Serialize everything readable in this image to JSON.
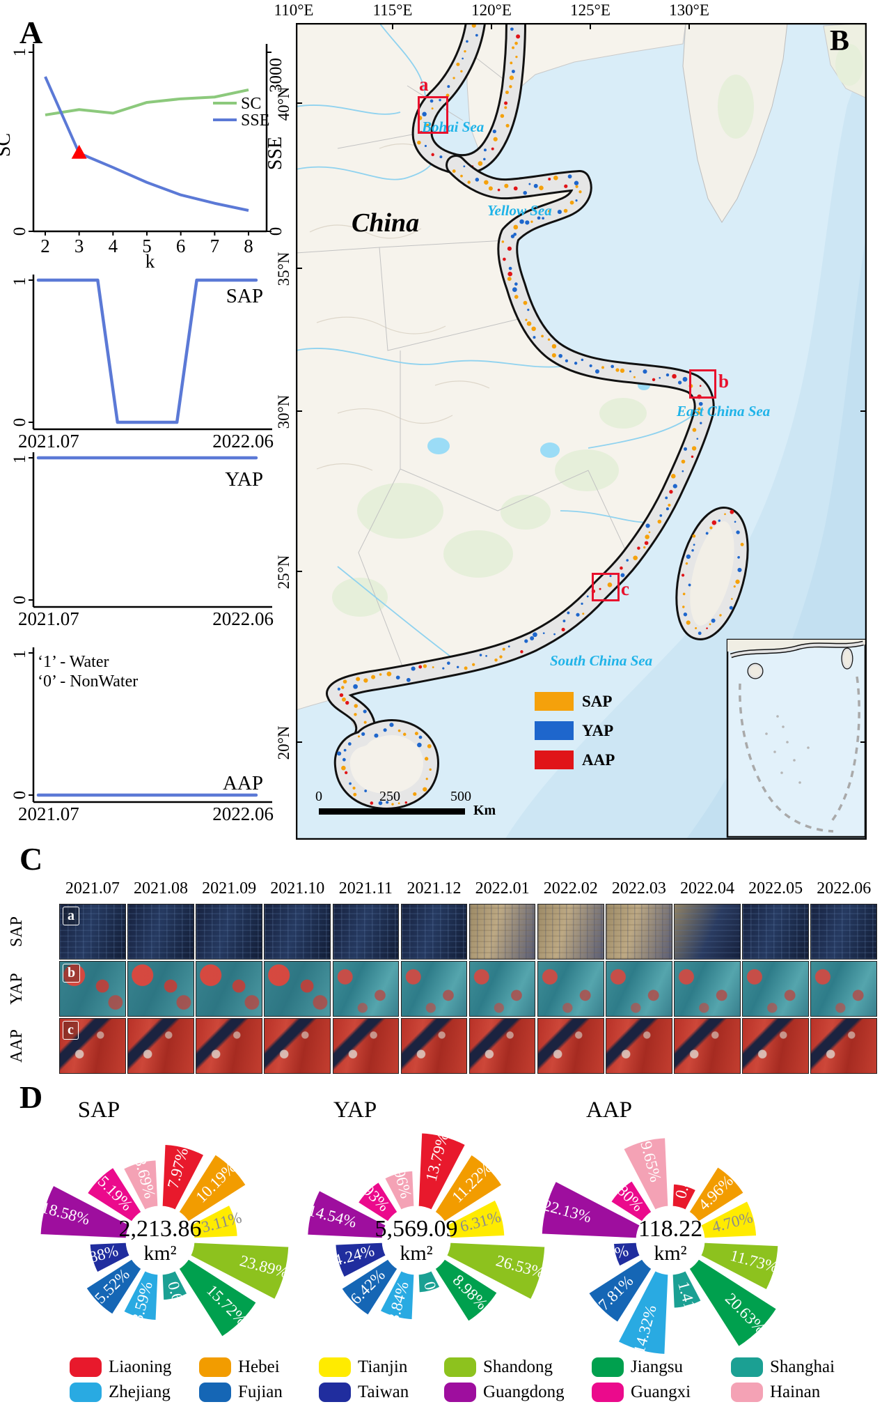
{
  "panelA": {
    "label": "A",
    "legend": {
      "sc": "SC",
      "sse": "SSE"
    },
    "axis": {
      "y_left_label": "SC",
      "y_right_label": "SSE",
      "x_label": "k",
      "y_left_ticks": [
        "1",
        "0"
      ],
      "y_right_ticks": [
        "3000",
        "0"
      ],
      "x_ticks": [
        "2",
        "3",
        "4",
        "5",
        "6",
        "7",
        "8"
      ]
    }
  },
  "panelB": {
    "label": "B",
    "country_label": "China",
    "sea_labels": [
      "Bohai Sea",
      "Yellow Sea",
      "East China Sea",
      "South China Sea"
    ],
    "lon_labels": [
      "110°E",
      "115°E",
      "120°E",
      "125°E",
      "130°E"
    ],
    "lat_labels": [
      "40°N",
      "35°N",
      "30°N",
      "25°N",
      "20°N"
    ],
    "site_markers": [
      "a",
      "b",
      "c"
    ],
    "legend": [
      {
        "label": "SAP",
        "color": "#F5A10B"
      },
      {
        "label": "YAP",
        "color": "#1E66CC"
      },
      {
        "label": "AAP",
        "color": "#E01418"
      }
    ],
    "scalebar": {
      "ticks": [
        "0",
        "250",
        "500"
      ],
      "unit": "Km"
    }
  },
  "panelC": {
    "label": "C",
    "columns": [
      "2021.07",
      "2021.08",
      "2021.09",
      "2021.10",
      "2021.11",
      "2021.12",
      "2022.01",
      "2022.02",
      "2022.03",
      "2022.04",
      "2022.05",
      "2022.06"
    ],
    "rows": [
      {
        "letter": "a",
        "label": "SAP"
      },
      {
        "letter": "b",
        "label": "YAP"
      },
      {
        "letter": "c",
        "label": "AAP"
      }
    ]
  },
  "panelD": {
    "label": "D"
  },
  "provinces": [
    {
      "name": "Liaoning",
      "color": "#E8192C"
    },
    {
      "name": "Hebei",
      "color": "#F29C00"
    },
    {
      "name": "Tianjin",
      "color": "#FFEB00"
    },
    {
      "name": "Shandong",
      "color": "#8DC21E"
    },
    {
      "name": "Jiangsu",
      "color": "#00A04E"
    },
    {
      "name": "Shanghai",
      "color": "#1BA093"
    },
    {
      "name": "Zhejiang",
      "color": "#29AAE2"
    },
    {
      "name": "Fujian",
      "color": "#1566B5"
    },
    {
      "name": "Taiwan",
      "color": "#202D9E"
    },
    {
      "name": "Guangdong",
      "color": "#9E0E9E"
    },
    {
      "name": "Guangxi",
      "color": "#EB0A8C"
    },
    {
      "name": "Hainan",
      "color": "#F4A2B5"
    }
  ],
  "chart_data": [
    {
      "id": "elbow",
      "type": "line",
      "x": [
        2,
        3,
        4,
        5,
        6,
        7,
        8
      ],
      "xlabel": "k",
      "ylabel_left": "SC",
      "ylabel_right": "SSE",
      "ylim_left": [
        0,
        1
      ],
      "ylim_right": [
        0,
        3000
      ],
      "legend_position": "right-inside",
      "grid": false,
      "series": [
        {
          "name": "SC",
          "axis": "left",
          "color": "#8CC97C",
          "values": [
            0.65,
            0.68,
            0.66,
            0.72,
            0.74,
            0.75,
            0.79
          ]
        },
        {
          "name": "SSE",
          "axis": "right",
          "color": "#5B79D6",
          "values": [
            2590,
            1310,
            1070,
            820,
            610,
            470,
            350
          ]
        }
      ],
      "elbow_marker": {
        "series": "SSE",
        "k": 3,
        "color": "#FF0000"
      }
    },
    {
      "id": "sap_monthly_status",
      "type": "line",
      "title": "SAP",
      "x_labels": [
        "2021.07",
        "2021.08",
        "2021.09",
        "2021.10",
        "2021.11",
        "2021.12",
        "2022.01",
        "2022.02",
        "2022.03",
        "2022.04",
        "2022.05",
        "2022.06"
      ],
      "values": [
        1,
        1,
        1,
        1,
        0,
        0,
        0,
        0,
        1,
        1,
        1,
        1
      ],
      "ylim": [
        0,
        1
      ],
      "yticks": [
        "1",
        "0"
      ],
      "x_tick_labels": [
        "2021.07",
        "2022.06"
      ],
      "color": "#5B79D6"
    },
    {
      "id": "yap_monthly_status",
      "type": "line",
      "title": "YAP",
      "x_labels": [
        "2021.07",
        "2021.08",
        "2021.09",
        "2021.10",
        "2021.11",
        "2021.12",
        "2022.01",
        "2022.02",
        "2022.03",
        "2022.04",
        "2022.05",
        "2022.06"
      ],
      "values": [
        1,
        1,
        1,
        1,
        1,
        1,
        1,
        1,
        1,
        1,
        1,
        1
      ],
      "ylim": [
        0,
        1
      ],
      "yticks": [
        "1",
        "0"
      ],
      "x_tick_labels": [
        "2021.07",
        "2022.06"
      ],
      "color": "#5B79D6"
    },
    {
      "id": "aap_monthly_status",
      "type": "line",
      "title": "AAP",
      "x_labels": [
        "2021.07",
        "2021.08",
        "2021.09",
        "2021.10",
        "2021.11",
        "2021.12",
        "2022.01",
        "2022.02",
        "2022.03",
        "2022.04",
        "2022.05",
        "2022.06"
      ],
      "values": [
        0,
        0,
        0,
        0,
        0,
        0,
        0,
        0,
        0,
        0,
        0,
        0
      ],
      "ylim": [
        0,
        1
      ],
      "yticks": [
        "1",
        "0"
      ],
      "x_tick_labels": [
        "2021.07",
        "2022.06"
      ],
      "color": "#5B79D6",
      "annotation": [
        "‘1’ - Water",
        "‘0’ - NonWater"
      ]
    },
    {
      "id": "rose_sap",
      "type": "rose",
      "title": "SAP",
      "center_value": "2,213.86",
      "center_unit": "km²",
      "categories": [
        "Liaoning",
        "Hebei",
        "Tianjin",
        "Shandong",
        "Jiangsu",
        "Shanghai",
        "Zhejiang",
        "Fujian",
        "Taiwan",
        "Guangdong",
        "Guangxi",
        "Hainan"
      ],
      "values": [
        7.97,
        10.19,
        3.11,
        23.89,
        15.72,
        0.69,
        3.59,
        5.52,
        1.88,
        18.58,
        5.19,
        3.69
      ]
    },
    {
      "id": "rose_yap",
      "type": "rose",
      "title": "YAP",
      "center_value": "5,569.09",
      "center_unit": "km²",
      "categories": [
        "Liaoning",
        "Hebei",
        "Tianjin",
        "Shandong",
        "Jiangsu",
        "Shanghai",
        "Zhejiang",
        "Fujian",
        "Taiwan",
        "Guangdong",
        "Guangxi",
        "Hainan"
      ],
      "values": [
        13.79,
        11.22,
        6.31,
        26.53,
        8.98,
        0.25,
        3.84,
        6.42,
        4.24,
        14.54,
        1.93,
        1.96
      ]
    },
    {
      "id": "rose_aap",
      "type": "rose",
      "title": "AAP",
      "center_value": "118.22",
      "center_unit": "km²",
      "categories": [
        "Liaoning",
        "Hebei",
        "Tianjin",
        "Shandong",
        "Jiangsu",
        "Shanghai",
        "Zhejiang",
        "Fujian",
        "Taiwan",
        "Guangdong",
        "Guangxi",
        "Hainan"
      ],
      "values": [
        0.41,
        4.96,
        4.7,
        11.73,
        20.63,
        1.41,
        14.32,
        7.81,
        0.44,
        22.13,
        1.8,
        9.65
      ]
    }
  ]
}
